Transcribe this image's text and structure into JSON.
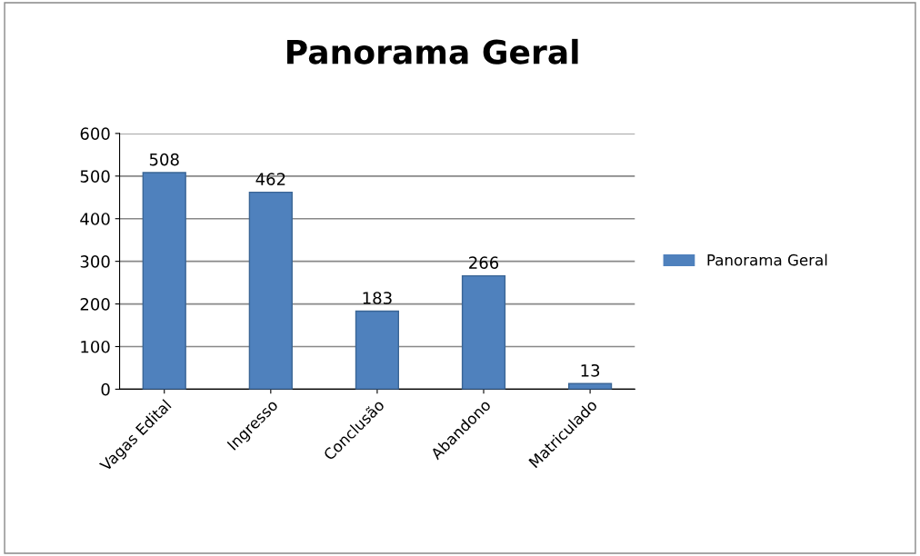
{
  "chart_data": {
    "type": "bar",
    "title": "Panorama Geral",
    "categories": [
      "Vagas Edital",
      "Ingresso",
      "Conclusão",
      "Abandono",
      "Matriculado"
    ],
    "series": [
      {
        "name": "Panorama Geral",
        "color": "#4f81bd",
        "values": [
          508,
          462,
          183,
          266,
          13
        ]
      }
    ],
    "ylim": [
      0,
      600
    ],
    "yticks": [
      0,
      100,
      200,
      300,
      400,
      500,
      600
    ],
    "grid": "y",
    "legend": "right",
    "data_labels": true
  }
}
